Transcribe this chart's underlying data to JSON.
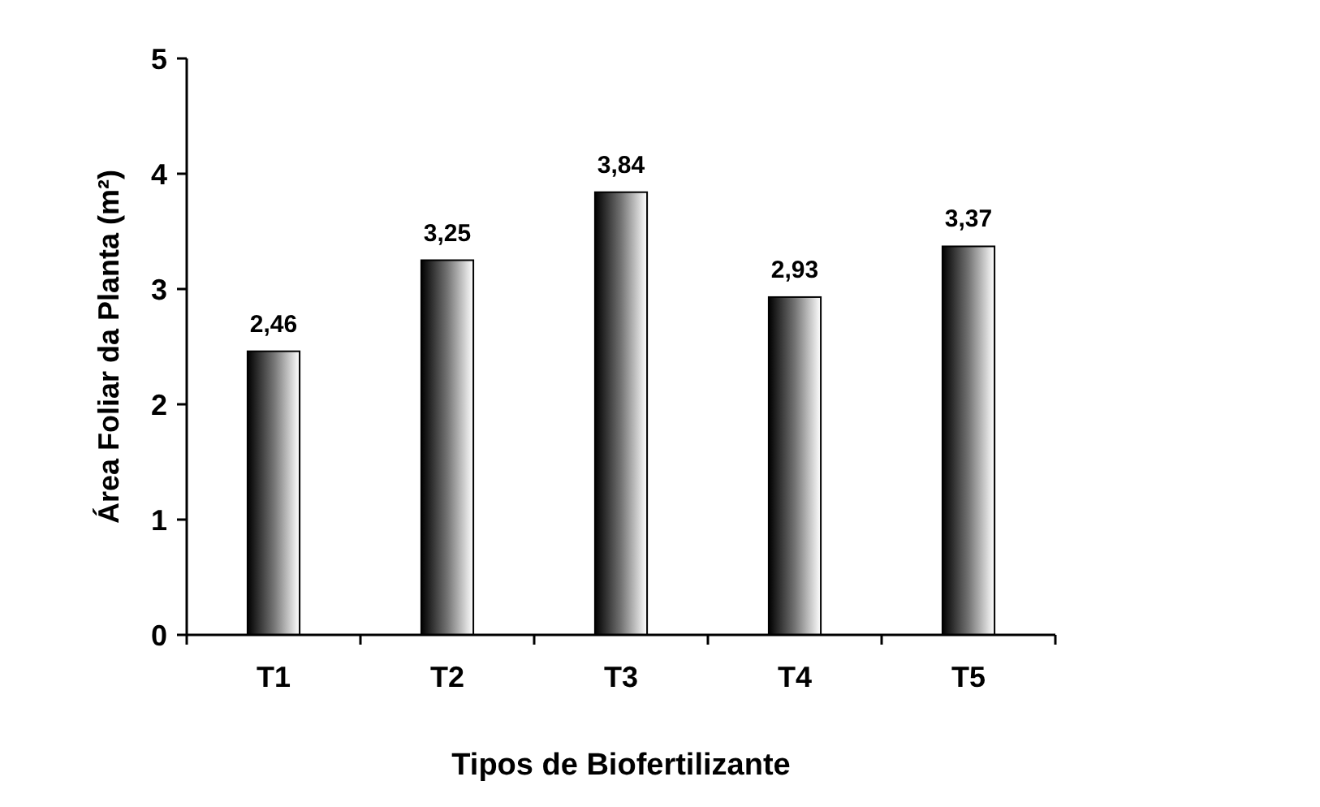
{
  "chart_data": {
    "type": "bar",
    "xlabel": "Tipos de Biofertilizante",
    "ylabel": "Área Foliar da Planta (m²)",
    "categories": [
      "T1",
      "T2",
      "T3",
      "T4",
      "T5"
    ],
    "values": [
      2.46,
      3.25,
      3.84,
      2.93,
      3.37
    ],
    "value_labels": [
      "2,46",
      "3,25",
      "3,84",
      "2,93",
      "3,37"
    ],
    "color": "#000000",
    "ylim": [
      0,
      5
    ],
    "yticks": [
      0,
      1,
      2,
      3,
      4,
      5
    ],
    "grid": false
  }
}
